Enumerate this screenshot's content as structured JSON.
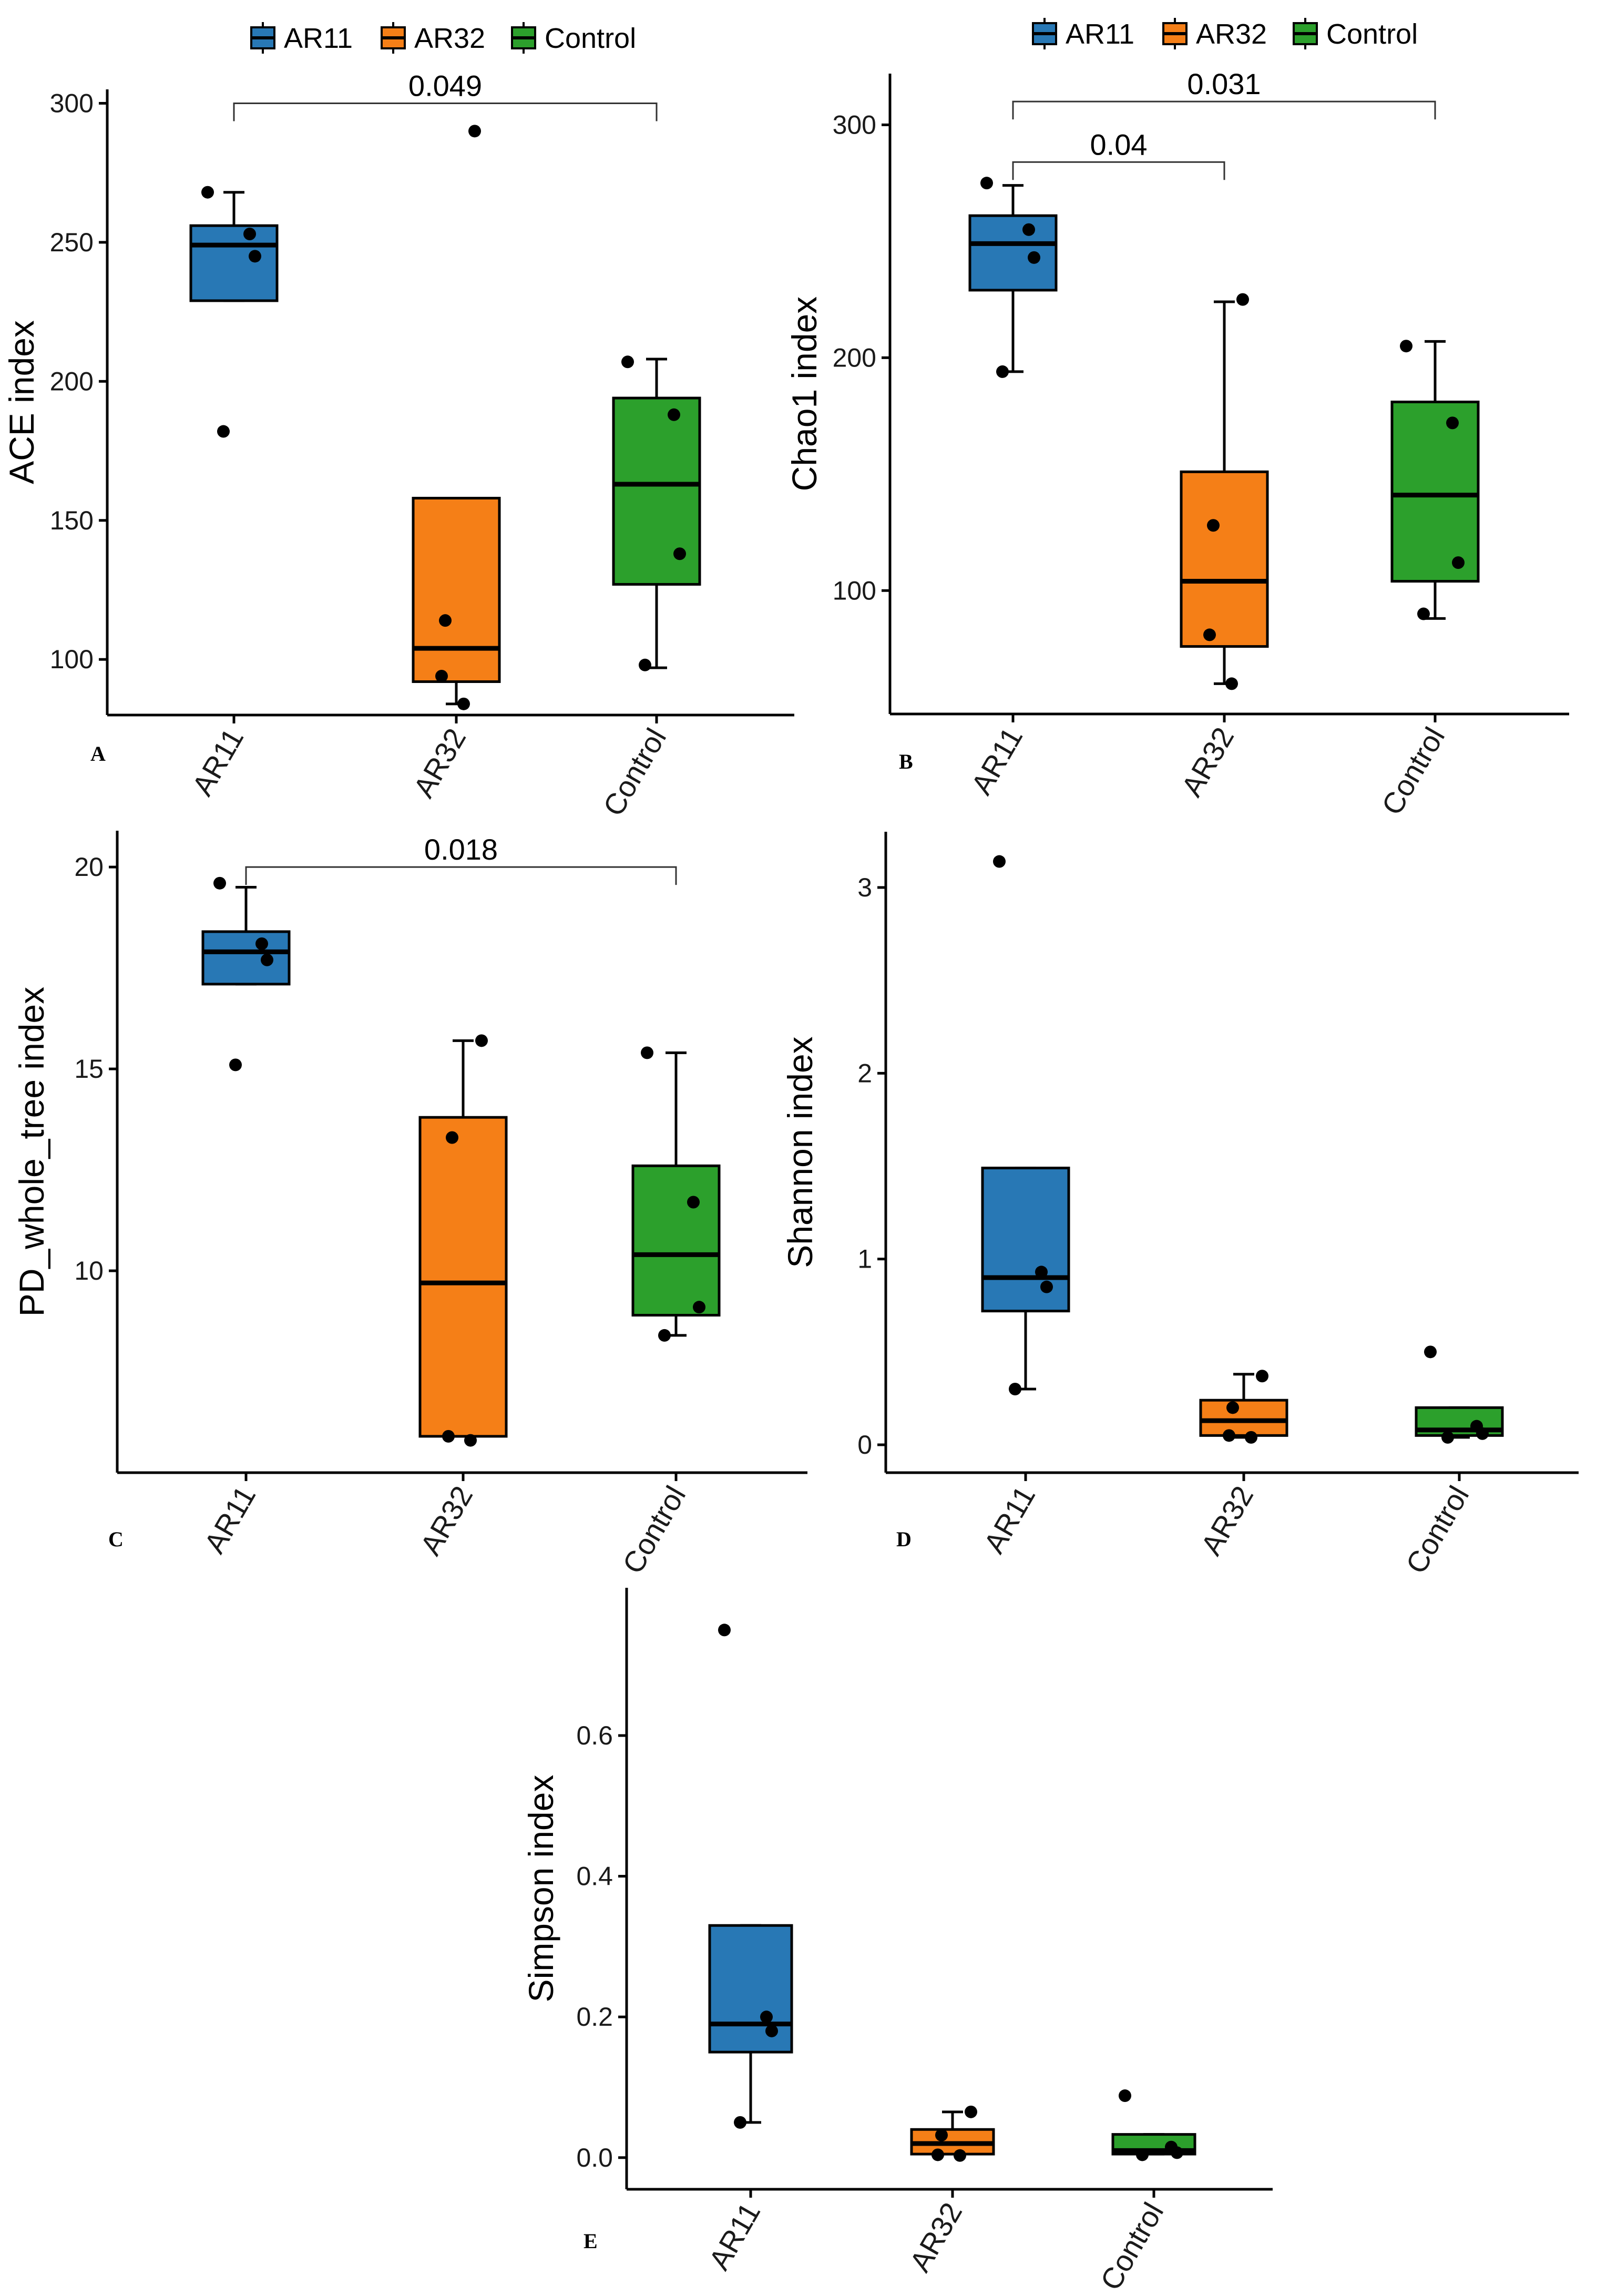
{
  "colors": {
    "AR11": "#2878b5",
    "AR32": "#f57f17",
    "Control": "#2ca02c"
  },
  "legends": [
    {
      "items": [
        "AR11",
        "AR32",
        "Control"
      ]
    },
    {
      "items": [
        "AR11",
        "AR32",
        "Control"
      ]
    }
  ],
  "chart_data": [
    {
      "type": "box",
      "panel": "A",
      "ylabel": "ACE index",
      "categories": [
        "AR11",
        "AR32",
        "Control"
      ],
      "ylim": [
        80,
        305
      ],
      "yticks": [
        100,
        150,
        200,
        250,
        300
      ],
      "boxes": [
        {
          "group": "AR11",
          "q1": 229,
          "median": 249,
          "q3": 256,
          "whisker_low": 229,
          "whisker_high": 268
        },
        {
          "group": "AR32",
          "q1": 92,
          "median": 104,
          "q3": 158,
          "whisker_low": 84,
          "whisker_high": 158
        },
        {
          "group": "Control",
          "q1": 127,
          "median": 163,
          "q3": 194,
          "whisker_low": 97,
          "whisker_high": 208
        }
      ],
      "points": [
        {
          "group": "AR11",
          "values": [
            268,
            253,
            245,
            182
          ]
        },
        {
          "group": "AR32",
          "values": [
            290,
            114,
            94,
            84
          ]
        },
        {
          "group": "Control",
          "values": [
            207,
            188,
            138,
            98
          ]
        }
      ],
      "comparisons": [
        {
          "from": "AR11",
          "to": "Control",
          "y": 300,
          "label": "0.049"
        }
      ]
    },
    {
      "type": "box",
      "panel": "B",
      "ylabel": "Chao1 index",
      "categories": [
        "AR11",
        "AR32",
        "Control"
      ],
      "ylim": [
        47,
        322
      ],
      "yticks": [
        100,
        200,
        300
      ],
      "boxes": [
        {
          "group": "AR11",
          "q1": 229,
          "median": 249,
          "q3": 261,
          "whisker_low": 194,
          "whisker_high": 274
        },
        {
          "group": "AR32",
          "q1": 76,
          "median": 104,
          "q3": 151,
          "whisker_low": 60,
          "whisker_high": 224
        },
        {
          "group": "Control",
          "q1": 104,
          "median": 141,
          "q3": 181,
          "whisker_low": 88,
          "whisker_high": 207
        }
      ],
      "points": [
        {
          "group": "AR11",
          "values": [
            275,
            255,
            243,
            194
          ]
        },
        {
          "group": "AR32",
          "values": [
            225,
            128,
            81,
            60
          ]
        },
        {
          "group": "Control",
          "values": [
            205,
            172,
            112,
            90
          ]
        }
      ],
      "comparisons": [
        {
          "from": "AR11",
          "to": "Control",
          "y": 310,
          "label": "0.031"
        },
        {
          "from": "AR11",
          "to": "AR32",
          "y": 284,
          "label": "0.04"
        }
      ]
    },
    {
      "type": "box",
      "panel": "C",
      "ylabel": "PD_whole_tree index",
      "categories": [
        "AR11",
        "AR32",
        "Control"
      ],
      "ylim": [
        5,
        20.9
      ],
      "yticks": [
        10,
        15,
        20
      ],
      "boxes": [
        {
          "group": "AR11",
          "q1": 17.1,
          "median": 17.9,
          "q3": 18.4,
          "whisker_low": 17.1,
          "whisker_high": 19.5
        },
        {
          "group": "AR32",
          "q1": 5.9,
          "median": 9.7,
          "q3": 13.8,
          "whisker_low": 5.9,
          "whisker_high": 15.7
        },
        {
          "group": "Control",
          "q1": 8.9,
          "median": 10.4,
          "q3": 12.6,
          "whisker_low": 8.4,
          "whisker_high": 15.4
        }
      ],
      "points": [
        {
          "group": "AR11",
          "values": [
            19.6,
            18.1,
            17.7,
            15.1
          ]
        },
        {
          "group": "AR32",
          "values": [
            15.7,
            13.3,
            5.9,
            5.8
          ]
        },
        {
          "group": "Control",
          "values": [
            15.4,
            11.7,
            9.1,
            8.4
          ]
        }
      ],
      "comparisons": [
        {
          "from": "AR11",
          "to": "Control",
          "y": 20.0,
          "label": "0.018"
        }
      ]
    },
    {
      "type": "box",
      "panel": "D",
      "ylabel": "Shannon index",
      "categories": [
        "AR11",
        "AR32",
        "Control"
      ],
      "ylim": [
        -0.15,
        3.3
      ],
      "yticks": [
        0,
        1,
        2,
        3
      ],
      "boxes": [
        {
          "group": "AR11",
          "q1": 0.72,
          "median": 0.9,
          "q3": 1.49,
          "whisker_low": 0.3,
          "whisker_high": 1.49
        },
        {
          "group": "AR32",
          "q1": 0.05,
          "median": 0.13,
          "q3": 0.24,
          "whisker_low": 0.04,
          "whisker_high": 0.38
        },
        {
          "group": "Control",
          "q1": 0.05,
          "median": 0.08,
          "q3": 0.2,
          "whisker_low": 0.04,
          "whisker_high": 0.2
        }
      ],
      "points": [
        {
          "group": "AR11",
          "values": [
            3.14,
            0.93,
            0.85,
            0.3
          ]
        },
        {
          "group": "AR32",
          "values": [
            0.37,
            0.2,
            0.05,
            0.04
          ]
        },
        {
          "group": "Control",
          "values": [
            0.5,
            0.1,
            0.06,
            0.04
          ]
        }
      ],
      "comparisons": []
    },
    {
      "type": "box",
      "panel": "E",
      "ylabel": "Simpson index",
      "categories": [
        "AR11",
        "AR32",
        "Control"
      ],
      "ylim": [
        -0.045,
        0.81
      ],
      "yticks": [
        0.0,
        0.2,
        0.4,
        0.6
      ],
      "ytick_labels": [
        "0.0",
        "0.2",
        "0.4",
        "0.6"
      ],
      "boxes": [
        {
          "group": "AR11",
          "q1": 0.15,
          "median": 0.19,
          "q3": 0.33,
          "whisker_low": 0.05,
          "whisker_high": 0.33
        },
        {
          "group": "AR32",
          "q1": 0.005,
          "median": 0.02,
          "q3": 0.04,
          "whisker_low": 0.005,
          "whisker_high": 0.065
        },
        {
          "group": "Control",
          "q1": 0.005,
          "median": 0.01,
          "q3": 0.033,
          "whisker_low": 0.005,
          "whisker_high": 0.033
        }
      ],
      "points": [
        {
          "group": "AR11",
          "values": [
            0.75,
            0.2,
            0.18,
            0.05
          ]
        },
        {
          "group": "AR32",
          "values": [
            0.065,
            0.032,
            0.004,
            0.003
          ]
        },
        {
          "group": "Control",
          "values": [
            0.088,
            0.015,
            0.007,
            0.004
          ]
        }
      ],
      "comparisons": []
    }
  ]
}
